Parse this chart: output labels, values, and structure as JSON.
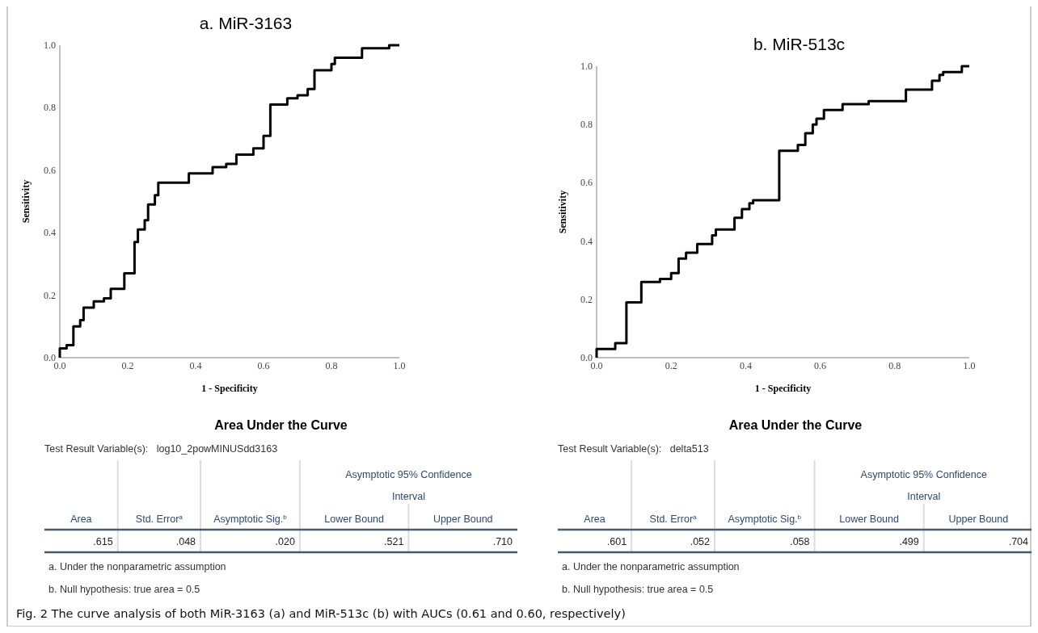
{
  "chart_data": [
    {
      "type": "step",
      "title": "a. MiR-3163",
      "xlabel": "1 - Specificity",
      "ylabel": "Sensitivity",
      "xlim": [
        0,
        1
      ],
      "ylim": [
        0,
        1
      ],
      "xticks": [
        {
          "value": 0,
          "label": "0.0"
        },
        {
          "value": 0.2,
          "label": "0.2"
        },
        {
          "value": 0.4,
          "label": "0.4"
        },
        {
          "value": 0.6,
          "label": "0.6"
        },
        {
          "value": 0.8,
          "label": "0.8"
        },
        {
          "value": 1,
          "label": "1.0"
        }
      ],
      "yticks": [
        {
          "value": 0,
          "label": "0.0"
        },
        {
          "value": 0.2,
          "label": "0.2"
        },
        {
          "value": 0.4,
          "label": "0.4"
        },
        {
          "value": 0.6,
          "label": "0.6"
        },
        {
          "value": 0.8,
          "label": "0.8"
        },
        {
          "value": 1,
          "label": "1.0"
        }
      ],
      "grid": false,
      "marker": "none",
      "line_style": "solid",
      "series": [
        {
          "color": "#000000",
          "x": [
            0,
            0,
            0.02,
            0.04,
            0.06,
            0.07,
            0.1,
            0.13,
            0.15,
            0.19,
            0.22,
            0.23,
            0.25,
            0.26,
            0.28,
            0.29,
            0.38,
            0.45,
            0.49,
            0.52,
            0.57,
            0.6,
            0.62,
            0.67,
            0.7,
            0.73,
            0.75,
            0.8,
            0.81,
            0.89,
            0.97,
            1.0
          ],
          "values": [
            0,
            0.03,
            0.04,
            0.1,
            0.12,
            0.16,
            0.18,
            0.19,
            0.22,
            0.27,
            0.37,
            0.41,
            0.44,
            0.49,
            0.52,
            0.56,
            0.59,
            0.61,
            0.62,
            0.65,
            0.67,
            0.71,
            0.81,
            0.83,
            0.84,
            0.86,
            0.92,
            0.94,
            0.96,
            0.99,
            1.0,
            1.0
          ]
        }
      ]
    },
    {
      "type": "step",
      "title": "b. MiR-513c",
      "xlabel": "1 - Specificity",
      "ylabel": "Sensitivity",
      "xlim": [
        0,
        1
      ],
      "ylim": [
        0,
        1
      ],
      "xticks": [
        {
          "value": 0,
          "label": "0.0"
        },
        {
          "value": 0.2,
          "label": "0.2"
        },
        {
          "value": 0.4,
          "label": "0.4"
        },
        {
          "value": 0.6,
          "label": "0.6"
        },
        {
          "value": 0.8,
          "label": "0.8"
        },
        {
          "value": 1,
          "label": "1.0"
        }
      ],
      "yticks": [
        {
          "value": 0,
          "label": "0.0"
        },
        {
          "value": 0.2,
          "label": "0.2"
        },
        {
          "value": 0.4,
          "label": "0.4"
        },
        {
          "value": 0.6,
          "label": "0.6"
        },
        {
          "value": 0.8,
          "label": "0.8"
        },
        {
          "value": 1,
          "label": "1.0"
        }
      ],
      "grid": false,
      "marker": "none",
      "line_style": "solid",
      "series": [
        {
          "color": "#000000",
          "x": [
            0,
            0,
            0.05,
            0.08,
            0.12,
            0.17,
            0.2,
            0.22,
            0.24,
            0.27,
            0.31,
            0.32,
            0.37,
            0.39,
            0.41,
            0.42,
            0.49,
            0.54,
            0.56,
            0.58,
            0.59,
            0.61,
            0.66,
            0.73,
            0.83,
            0.9,
            0.92,
            0.93,
            0.98,
            1.0
          ],
          "values": [
            0,
            0.03,
            0.05,
            0.19,
            0.26,
            0.27,
            0.29,
            0.34,
            0.36,
            0.39,
            0.42,
            0.44,
            0.48,
            0.51,
            0.53,
            0.54,
            0.71,
            0.73,
            0.77,
            0.8,
            0.82,
            0.85,
            0.87,
            0.88,
            0.92,
            0.95,
            0.97,
            0.98,
            1.0,
            1.0
          ]
        }
      ]
    },
    {
      "type": "other",
      "title": "Area Under the Curve",
      "annotations": [
        "Test Result Variable(s):   log10_2powMINUSdd3163",
        "Asymptotic 95% Confidence Interval",
        "Area",
        "Std. Error$^{a}$",
        "Asymptotic Sig.$^{b}$",
        "Lower Bound",
        "Upper Bound",
        ".615",
        ".048",
        ".020",
        ".521",
        ".710",
        "a. Under the nonparametric assumption",
        "b. Null hypothesis: true area = 0.5"
      ]
    },
    {
      "type": "other",
      "title": "Area Under the Curve",
      "annotations": [
        "Test Result Variable(s):   delta513",
        "Asymptotic 95% Confidence Interval",
        "Area",
        "Std. Error$^{a}$",
        "Asymptotic Sig.$^{b}$",
        "Lower Bound",
        "Upper Bound",
        ".601",
        ".052",
        ".058",
        ".499",
        ".704",
        "a. Under the nonparametric assumption",
        "b. Null hypothesis: true area = 0.5",
        "Fig. 2  The curve analysis of both MiR-3163 (a) and MiR-513c (b) with AUCs (0.61 and 0.60, respectively)"
      ]
    }
  ]
}
